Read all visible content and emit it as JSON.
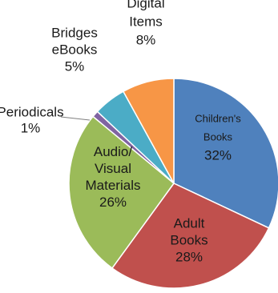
{
  "chart_data": {
    "type": "pie",
    "slices": [
      {
        "name": "Children's Books",
        "value": 32,
        "label_lines": [
          "Children's",
          "Books"
        ],
        "pct_text": "32%",
        "color": "#4f81bd",
        "text_color": "#ffffff"
      },
      {
        "name": "Adult Books",
        "value": 28,
        "label_lines": [
          "Adult",
          "Books"
        ],
        "pct_text": "28%",
        "color": "#c0504d",
        "text_color": "#1a1a1a"
      },
      {
        "name": "Audio/ Visual Materials",
        "value": 26,
        "label_lines": [
          "Audio/",
          "Visual",
          "Materials"
        ],
        "pct_text": "26%",
        "color": "#9bbb59",
        "text_color": "#1a1a1a"
      },
      {
        "name": "Periodicals",
        "value": 1,
        "label_lines": [
          "Periodicals"
        ],
        "pct_text": "1%",
        "color": "#8064a2",
        "text_color": "#1a1a1a"
      },
      {
        "name": "Bridges eBooks",
        "value": 5,
        "label_lines": [
          "Bridges",
          "eBooks"
        ],
        "pct_text": "5%",
        "color": "#4bacc6",
        "text_color": "#1a1a1a"
      },
      {
        "name": "Digital Items",
        "value": 8,
        "label_lines": [
          "Digital",
          "Items"
        ],
        "pct_text": "8%",
        "color": "#f79646",
        "text_color": "#1a1a1a"
      }
    ],
    "start_angle_deg": 0,
    "direction": "clockwise",
    "legend": "none"
  }
}
